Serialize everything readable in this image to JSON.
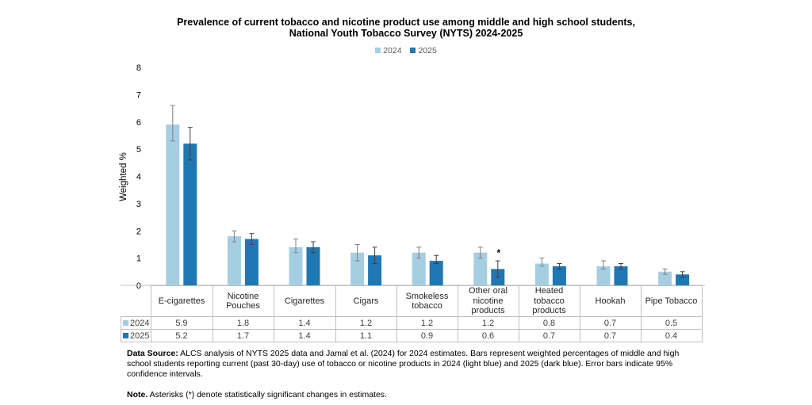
{
  "chart_data": {
    "type": "bar",
    "title": "Prevalence of current tobacco and nicotine product use among middle and high school students,",
    "subtitle": "National Youth Tobacco Survey (NYTS) 2024-2025",
    "xlabel": "",
    "ylabel": "Weighted  %",
    "ylim": [
      0,
      8
    ],
    "yticks": [
      "0",
      "1",
      "2",
      "3",
      "4",
      "5",
      "6",
      "7",
      "8"
    ],
    "legend_position": "top-center",
    "grid": false,
    "categories": [
      "E-cigarettes",
      "Nicotine\nPouches",
      "Cigarettes",
      "Cigars",
      "Smokeless\ntobacco",
      "Other oral\nnicotine\nproducts",
      "Heated\ntobacco\nproducts",
      "Hookah",
      "Pipe Tobacco"
    ],
    "series": [
      {
        "name": "2024",
        "color": "#A6CEE3",
        "values": [
          5.9,
          1.8,
          1.4,
          1.2,
          1.2,
          1.2,
          0.8,
          0.7,
          0.5
        ],
        "labels": [
          "5.9",
          "1.8",
          "1.4",
          "1.2",
          "1.2",
          "1.2",
          "0.8",
          "0.7",
          "0.5"
        ],
        "ci_low": [
          5.3,
          1.6,
          1.2,
          0.9,
          1.0,
          1.0,
          0.7,
          0.6,
          0.4
        ],
        "ci_high": [
          6.6,
          2.0,
          1.7,
          1.5,
          1.4,
          1.4,
          1.0,
          0.9,
          0.6
        ]
      },
      {
        "name": "2025",
        "color": "#1F78B4",
        "values": [
          5.2,
          1.7,
          1.4,
          1.1,
          0.9,
          0.6,
          0.7,
          0.7,
          0.4
        ],
        "labels": [
          "5.2",
          "1.7",
          "1.4",
          "1.1",
          "0.9",
          "0.6",
          "0.7",
          "0.7",
          "0.4"
        ],
        "ci_low": [
          4.6,
          1.5,
          1.2,
          0.8,
          0.8,
          0.3,
          0.6,
          0.6,
          0.3
        ],
        "ci_high": [
          5.8,
          1.9,
          1.6,
          1.4,
          1.1,
          0.9,
          0.8,
          0.8,
          0.5
        ]
      }
    ],
    "annotations": [
      {
        "category_index": 5,
        "series": "2025",
        "text": "*"
      }
    ]
  },
  "table": {
    "headers": [
      "E-cigarettes",
      "Nicotine Pouches",
      "Cigarettes",
      "Cigars",
      "Smokeless tobacco",
      "Other oral nicotine products",
      "Heated tobacco products",
      "Hookah",
      "Pipe Tobacco"
    ]
  },
  "notes": {
    "source_label": "Data Source:",
    "source_text": " ALCS analysis of NYTS 2025 data and Jamal et al. (2024) for 2024 estimates. Bars represent weighted percentages of middle and high school students reporting current (past 30-day) use of tobacco or nicotine products in 2024 (light blue) and 2025 (dark blue). Error bars indicate 95% confidence intervals.",
    "note_label": "Note.",
    "note_text": " Asterisks (*) denote statistically significant changes in estimates."
  }
}
